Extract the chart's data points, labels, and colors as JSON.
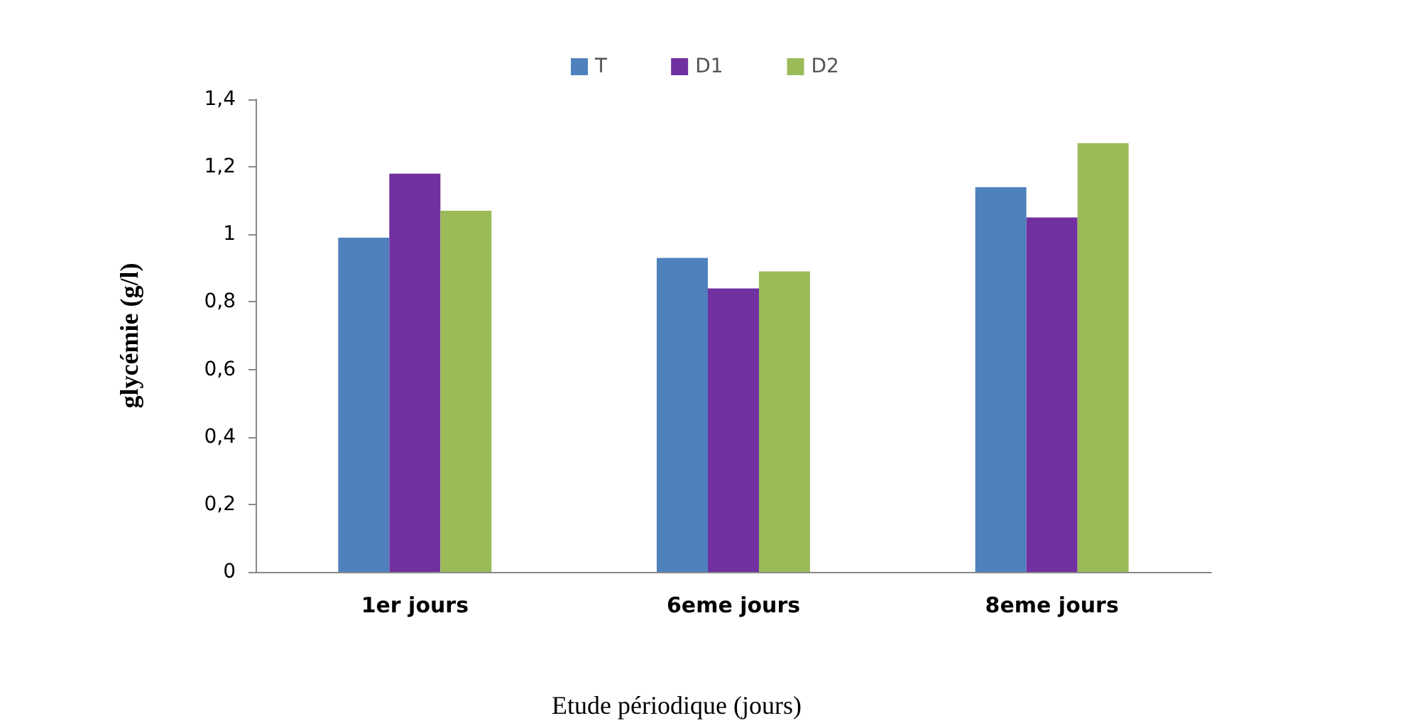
{
  "chart_data": {
    "type": "bar",
    "xlabel": "Etude périodique (jours)",
    "ylabel": "glycémie (g/l)",
    "categories": [
      "1er jours",
      "6eme jours",
      "8eme jours"
    ],
    "series": [
      {
        "name": "T",
        "color": "#4f81bd",
        "values": [
          0.99,
          0.93,
          1.14
        ]
      },
      {
        "name": "D1",
        "color": "#7030a0",
        "values": [
          1.18,
          0.84,
          1.05
        ]
      },
      {
        "name": "D2",
        "color": "#9bbb59",
        "values": [
          1.07,
          0.89,
          1.27
        ]
      }
    ],
    "ylim": [
      0,
      1.4
    ],
    "yticks": [
      0,
      {
        "value": 0.2,
        "label": "0,2"
      },
      {
        "value": 0.4,
        "label": "0,4"
      },
      {
        "value": 0.6,
        "label": "0,6"
      },
      {
        "value": 0.8,
        "label": "0,8"
      },
      1,
      {
        "value": 1.2,
        "label": "1,2"
      },
      {
        "value": 1.4,
        "label": "1,4"
      }
    ],
    "grid": false,
    "legend": "top"
  }
}
